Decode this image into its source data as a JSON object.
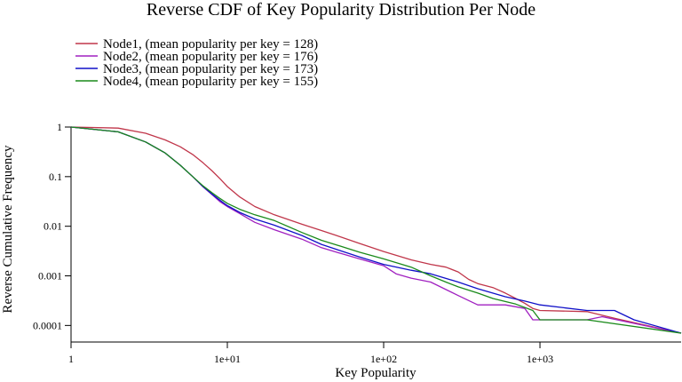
{
  "chart_data": {
    "type": "line",
    "title": "Reverse CDF of Key Popularity Distribution Per Node",
    "xlabel": "Key Popularity",
    "ylabel": "Reverse Cumulative Frequency",
    "x_scale": "log",
    "y_scale": "log",
    "xlim": [
      1,
      8000
    ],
    "ylim": [
      7e-05,
      1
    ],
    "x_ticks": [
      {
        "value": 1,
        "label": "1"
      },
      {
        "value": 10,
        "label": "1e+01"
      },
      {
        "value": 100,
        "label": "1e+02"
      },
      {
        "value": 1000,
        "label": "1e+03"
      }
    ],
    "y_ticks": [
      {
        "value": 1,
        "label": "1"
      },
      {
        "value": 0.1,
        "label": "0.1"
      },
      {
        "value": 0.01,
        "label": "0.01"
      },
      {
        "value": 0.001,
        "label": "0.001"
      },
      {
        "value": 0.0001,
        "label": "0.0001"
      }
    ],
    "grid": false,
    "legend_position": "top-left",
    "series": [
      {
        "name": "Node1, (mean popularity per key = 128)",
        "color": "#c0364a",
        "points": [
          [
            1,
            1.0
          ],
          [
            2,
            0.95
          ],
          [
            3,
            0.75
          ],
          [
            4,
            0.55
          ],
          [
            5,
            0.4
          ],
          [
            6,
            0.28
          ],
          [
            7,
            0.19
          ],
          [
            8,
            0.13
          ],
          [
            9,
            0.09
          ],
          [
            10,
            0.063
          ],
          [
            12,
            0.039
          ],
          [
            15,
            0.025
          ],
          [
            20,
            0.017
          ],
          [
            30,
            0.011
          ],
          [
            40,
            0.0082
          ],
          [
            50,
            0.0065
          ],
          [
            70,
            0.0045
          ],
          [
            100,
            0.0031
          ],
          [
            150,
            0.0021
          ],
          [
            200,
            0.0017
          ],
          [
            250,
            0.0015
          ],
          [
            300,
            0.0012
          ],
          [
            350,
            0.00085
          ],
          [
            400,
            0.0007
          ],
          [
            500,
            0.00058
          ],
          [
            600,
            0.00045
          ],
          [
            700,
            0.00035
          ],
          [
            800,
            0.00028
          ],
          [
            900,
            0.00022
          ],
          [
            1000,
            0.0002
          ],
          [
            2000,
            0.00019
          ],
          [
            3000,
            0.00014
          ],
          [
            8000,
            7e-05
          ]
        ]
      },
      {
        "name": "Node2, (mean popularity per key = 176)",
        "color": "#a020c0",
        "points": [
          [
            1,
            1.0
          ],
          [
            2,
            0.8
          ],
          [
            3,
            0.5
          ],
          [
            4,
            0.3
          ],
          [
            5,
            0.17
          ],
          [
            6,
            0.1
          ],
          [
            7,
            0.062
          ],
          [
            8,
            0.043
          ],
          [
            9,
            0.031
          ],
          [
            10,
            0.025
          ],
          [
            12,
            0.018
          ],
          [
            15,
            0.012
          ],
          [
            20,
            0.0085
          ],
          [
            30,
            0.0055
          ],
          [
            40,
            0.0037
          ],
          [
            50,
            0.003
          ],
          [
            70,
            0.0022
          ],
          [
            100,
            0.0016
          ],
          [
            120,
            0.0011
          ],
          [
            150,
            0.0009
          ],
          [
            200,
            0.00075
          ],
          [
            300,
            0.0004
          ],
          [
            400,
            0.00026
          ],
          [
            600,
            0.00026
          ],
          [
            800,
            0.00022
          ],
          [
            900,
            0.00013
          ],
          [
            2000,
            0.00013
          ],
          [
            2500,
            0.00015
          ],
          [
            8000,
            7e-05
          ]
        ]
      },
      {
        "name": "Node3, (mean popularity per key = 173)",
        "color": "#1010c8",
        "points": [
          [
            1,
            1.0
          ],
          [
            2,
            0.8
          ],
          [
            3,
            0.5
          ],
          [
            4,
            0.3
          ],
          [
            5,
            0.17
          ],
          [
            6,
            0.1
          ],
          [
            7,
            0.063
          ],
          [
            8,
            0.044
          ],
          [
            9,
            0.033
          ],
          [
            10,
            0.026
          ],
          [
            12,
            0.019
          ],
          [
            15,
            0.014
          ],
          [
            20,
            0.0105
          ],
          [
            30,
            0.0065
          ],
          [
            40,
            0.0043
          ],
          [
            50,
            0.0034
          ],
          [
            70,
            0.0024
          ],
          [
            100,
            0.0017
          ],
          [
            150,
            0.0013
          ],
          [
            200,
            0.0011
          ],
          [
            300,
            0.00075
          ],
          [
            400,
            0.00055
          ],
          [
            600,
            0.00038
          ],
          [
            800,
            0.00031
          ],
          [
            1000,
            0.00026
          ],
          [
            2000,
            0.0002
          ],
          [
            3000,
            0.0002
          ],
          [
            4000,
            0.00013
          ],
          [
            8000,
            7e-05
          ]
        ]
      },
      {
        "name": "Node4, (mean popularity per key = 155)",
        "color": "#1a8a1a",
        "points": [
          [
            1,
            1.0
          ],
          [
            2,
            0.8
          ],
          [
            3,
            0.5
          ],
          [
            4,
            0.3
          ],
          [
            5,
            0.17
          ],
          [
            6,
            0.1
          ],
          [
            7,
            0.065
          ],
          [
            8,
            0.047
          ],
          [
            9,
            0.036
          ],
          [
            10,
            0.029
          ],
          [
            12,
            0.022
          ],
          [
            15,
            0.017
          ],
          [
            20,
            0.013
          ],
          [
            30,
            0.0075
          ],
          [
            40,
            0.0052
          ],
          [
            50,
            0.0042
          ],
          [
            70,
            0.003
          ],
          [
            100,
            0.0022
          ],
          [
            150,
            0.0015
          ],
          [
            200,
            0.001
          ],
          [
            250,
            0.00075
          ],
          [
            300,
            0.0006
          ],
          [
            400,
            0.00045
          ],
          [
            500,
            0.00035
          ],
          [
            700,
            0.00027
          ],
          [
            900,
            0.0002
          ],
          [
            1000,
            0.00013
          ],
          [
            2000,
            0.00013
          ],
          [
            8000,
            7e-05
          ]
        ]
      }
    ]
  }
}
